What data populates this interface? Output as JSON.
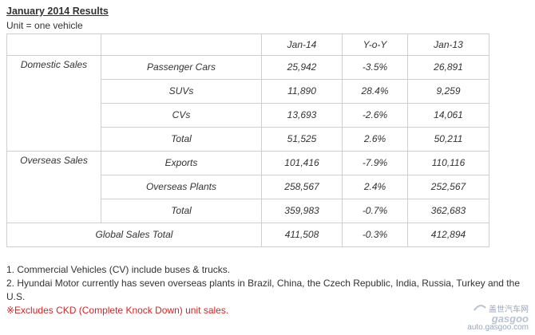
{
  "title": "January 2014 Results",
  "unit": "Unit = one vehicle",
  "table": {
    "headers": [
      "",
      "",
      "Jan-14",
      "Y-o-Y",
      "Jan-13"
    ],
    "domestic": {
      "label": "Domestic Sales",
      "rows": [
        {
          "category": "Passenger Cars",
          "jan14": "25,942",
          "yoy": "-3.5%",
          "jan13": "26,891"
        },
        {
          "category": "SUVs",
          "jan14": "11,890",
          "yoy": "28.4%",
          "jan13": "9,259"
        },
        {
          "category": "CVs",
          "jan14": "13,693",
          "yoy": "-2.6%",
          "jan13": "14,061"
        },
        {
          "category": "Total",
          "jan14": "51,525",
          "yoy": "2.6%",
          "jan13": "50,211"
        }
      ]
    },
    "overseas": {
      "label": "Overseas Sales",
      "rows": [
        {
          "category": "Exports",
          "jan14": "101,416",
          "yoy": "-7.9%",
          "jan13": "110,116"
        },
        {
          "category": "Overseas Plants",
          "jan14": "258,567",
          "yoy": "2.4%",
          "jan13": "252,567"
        },
        {
          "category": "Total",
          "jan14": "359,983",
          "yoy": "-0.7%",
          "jan13": "362,683"
        }
      ]
    },
    "global": {
      "label": "Global Sales Total",
      "jan14": "411,508",
      "yoy": "-0.3%",
      "jan13": "412,894"
    }
  },
  "notes": {
    "note1": "1. Commercial Vehicles (CV) include buses & trucks.",
    "note2": "2. Hyundai Motor currently has seven overseas plants in Brazil, China, the Czech Republic, India, Russia, Turkey and the U.S.",
    "note3": "※Excludes CKD (Complete Knock Down) unit sales.",
    "note3_color": "#e02020"
  },
  "watermark": {
    "logo_text": "gasgoo",
    "chinese": "盖世汽车网",
    "url": "auto.gasgoo.com"
  }
}
